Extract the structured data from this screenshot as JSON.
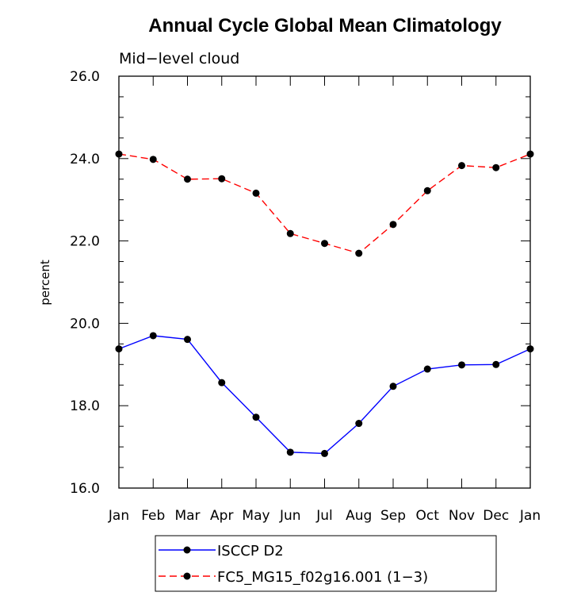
{
  "chart_data": {
    "type": "line",
    "title": "Annual Cycle Global Mean Climatology",
    "subtitle": "Mid−level cloud",
    "xlabel": "",
    "ylabel": "percent",
    "categories": [
      "Jan",
      "Feb",
      "Mar",
      "Apr",
      "May",
      "Jun",
      "Jul",
      "Aug",
      "Sep",
      "Oct",
      "Nov",
      "Dec",
      "Jan"
    ],
    "ylim": [
      16.0,
      26.0
    ],
    "yticks": [
      "16.0",
      "18.0",
      "20.0",
      "22.0",
      "24.0",
      "26.0"
    ],
    "grid": false,
    "legend_position": "bottom",
    "series": [
      {
        "name": "ISCCP D2",
        "color": "#0000ff",
        "line_style": "solid",
        "marker": "filled-circle",
        "values": [
          19.38,
          19.7,
          19.61,
          18.56,
          17.72,
          16.87,
          16.84,
          17.57,
          18.47,
          18.89,
          18.99,
          19.0,
          19.38
        ]
      },
      {
        "name": "FC5_MG15_f02g16.001 (1−3)",
        "color": "#ff0000",
        "line_style": "dashed",
        "marker": "filled-circle",
        "values": [
          24.11,
          23.98,
          23.5,
          23.51,
          23.16,
          22.18,
          21.94,
          21.7,
          22.4,
          23.22,
          23.83,
          23.78,
          24.11
        ]
      }
    ]
  }
}
